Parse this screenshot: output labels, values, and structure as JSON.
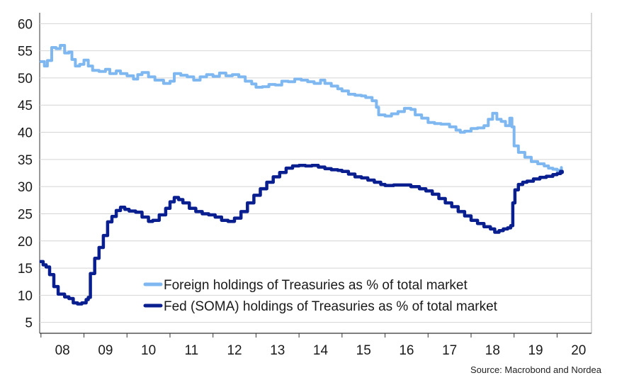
{
  "chart_data": {
    "type": "line",
    "y_ticks": [
      5,
      10,
      15,
      20,
      25,
      30,
      35,
      40,
      45,
      50,
      55,
      60
    ],
    "ylim": [
      3,
      62
    ],
    "x_tick_labels": [
      "08",
      "09",
      "10",
      "11",
      "12",
      "13",
      "14",
      "15",
      "16",
      "17",
      "18",
      "19",
      "20"
    ],
    "xlim": [
      2007.97,
      2020.8
    ],
    "grid": "horizontal",
    "legend_position": "bottom-center",
    "source": "Source: Macrobond and Nordea",
    "series": [
      {
        "name": "Foreign holdings of Treasuries as % of total market",
        "color": "#7fb8f0",
        "points": [
          [
            2008.0,
            53
          ],
          [
            2008.08,
            52.2
          ],
          [
            2008.15,
            53.2
          ],
          [
            2008.25,
            55.6
          ],
          [
            2008.35,
            55.4
          ],
          [
            2008.45,
            56
          ],
          [
            2008.55,
            54.6
          ],
          [
            2008.65,
            54.8
          ],
          [
            2008.72,
            53.4
          ],
          [
            2008.8,
            52.2
          ],
          [
            2008.9,
            52.5
          ],
          [
            2009.0,
            53.3
          ],
          [
            2009.1,
            52.2
          ],
          [
            2009.2,
            51.4
          ],
          [
            2009.35,
            51.2
          ],
          [
            2009.5,
            51.6
          ],
          [
            2009.6,
            50.8
          ],
          [
            2009.75,
            51.3
          ],
          [
            2009.85,
            50.8
          ],
          [
            2010.0,
            50.4
          ],
          [
            2010.15,
            49.8
          ],
          [
            2010.25,
            50.6
          ],
          [
            2010.35,
            51.0
          ],
          [
            2010.5,
            50.2
          ],
          [
            2010.65,
            49.6
          ],
          [
            2010.85,
            49.0
          ],
          [
            2011.0,
            49.4
          ],
          [
            2011.1,
            50.8
          ],
          [
            2011.25,
            50.5
          ],
          [
            2011.4,
            50.2
          ],
          [
            2011.55,
            49.6
          ],
          [
            2011.7,
            50.2
          ],
          [
            2011.85,
            50.6
          ],
          [
            2012.0,
            50.3
          ],
          [
            2012.15,
            50.9
          ],
          [
            2012.3,
            50.4
          ],
          [
            2012.45,
            50.6
          ],
          [
            2012.6,
            50.2
          ],
          [
            2012.75,
            49.4
          ],
          [
            2012.9,
            48.9
          ],
          [
            2013.0,
            48.3
          ],
          [
            2013.15,
            48.4
          ],
          [
            2013.3,
            48.8
          ],
          [
            2013.45,
            48.7
          ],
          [
            2013.6,
            49.4
          ],
          [
            2013.75,
            49.3
          ],
          [
            2013.9,
            49.8
          ],
          [
            2014.05,
            49.6
          ],
          [
            2014.2,
            49.3
          ],
          [
            2014.35,
            49.0
          ],
          [
            2014.5,
            49.6
          ],
          [
            2014.6,
            49.0
          ],
          [
            2014.75,
            48.5
          ],
          [
            2014.9,
            48.0
          ],
          [
            2015.0,
            47.6
          ],
          [
            2015.15,
            47.0
          ],
          [
            2015.3,
            46.8
          ],
          [
            2015.45,
            46.7
          ],
          [
            2015.55,
            46.4
          ],
          [
            2015.7,
            45.8
          ],
          [
            2015.8,
            44.6
          ],
          [
            2015.85,
            43.2
          ],
          [
            2016.0,
            43.0
          ],
          [
            2016.15,
            43.4
          ],
          [
            2016.3,
            43.8
          ],
          [
            2016.45,
            44.4
          ],
          [
            2016.6,
            44.2
          ],
          [
            2016.7,
            43.2
          ],
          [
            2016.85,
            42.6
          ],
          [
            2017.0,
            41.8
          ],
          [
            2017.15,
            41.6
          ],
          [
            2017.3,
            41.5
          ],
          [
            2017.5,
            41.0
          ],
          [
            2017.65,
            40.4
          ],
          [
            2017.75,
            40.0
          ],
          [
            2017.85,
            40.2
          ],
          [
            2018.0,
            40.7
          ],
          [
            2018.15,
            40.8
          ],
          [
            2018.3,
            41.2
          ],
          [
            2018.4,
            42.4
          ],
          [
            2018.5,
            43.5
          ],
          [
            2018.6,
            42.4
          ],
          [
            2018.7,
            42.0
          ],
          [
            2018.8,
            41.2
          ],
          [
            2018.9,
            42.6
          ],
          [
            2018.95,
            41.0
          ],
          [
            2019.0,
            37.5
          ],
          [
            2019.1,
            36.3
          ],
          [
            2019.25,
            35.4
          ],
          [
            2019.4,
            34.6
          ],
          [
            2019.55,
            34.2
          ],
          [
            2019.7,
            33.8
          ],
          [
            2019.8,
            33.4
          ],
          [
            2019.9,
            33.2
          ],
          [
            2020.0,
            33.0
          ],
          [
            2020.1,
            33.5
          ]
        ]
      },
      {
        "name": "Fed (SOMA) holdings of Treasuries as % of total market",
        "color": "#0a1f8f",
        "points": [
          [
            2008.0,
            16.2
          ],
          [
            2008.05,
            15.6
          ],
          [
            2008.12,
            15.2
          ],
          [
            2008.2,
            13.8
          ],
          [
            2008.3,
            11.6
          ],
          [
            2008.4,
            10.2
          ],
          [
            2008.55,
            9.7
          ],
          [
            2008.65,
            9.4
          ],
          [
            2008.75,
            8.6
          ],
          [
            2008.85,
            8.4
          ],
          [
            2008.95,
            8.6
          ],
          [
            2009.05,
            9.2
          ],
          [
            2009.1,
            9.6
          ],
          [
            2009.15,
            14.0
          ],
          [
            2009.25,
            16.8
          ],
          [
            2009.35,
            18.8
          ],
          [
            2009.45,
            21.0
          ],
          [
            2009.55,
            23.5
          ],
          [
            2009.65,
            24.5
          ],
          [
            2009.75,
            25.6
          ],
          [
            2009.85,
            26.2
          ],
          [
            2009.95,
            25.8
          ],
          [
            2010.05,
            25.5
          ],
          [
            2010.2,
            25.3
          ],
          [
            2010.35,
            24.4
          ],
          [
            2010.5,
            23.6
          ],
          [
            2010.6,
            23.8
          ],
          [
            2010.75,
            24.8
          ],
          [
            2010.9,
            26.0
          ],
          [
            2011.0,
            27.2
          ],
          [
            2011.1,
            28.0
          ],
          [
            2011.2,
            27.6
          ],
          [
            2011.3,
            27.0
          ],
          [
            2011.45,
            26.0
          ],
          [
            2011.6,
            25.4
          ],
          [
            2011.75,
            25.0
          ],
          [
            2011.9,
            24.8
          ],
          [
            2012.05,
            24.4
          ],
          [
            2012.2,
            23.8
          ],
          [
            2012.35,
            23.6
          ],
          [
            2012.5,
            24.2
          ],
          [
            2012.65,
            25.4
          ],
          [
            2012.8,
            27.0
          ],
          [
            2012.95,
            28.4
          ],
          [
            2013.1,
            29.6
          ],
          [
            2013.25,
            30.8
          ],
          [
            2013.4,
            31.8
          ],
          [
            2013.55,
            32.6
          ],
          [
            2013.7,
            33.4
          ],
          [
            2013.85,
            33.8
          ],
          [
            2014.0,
            33.9
          ],
          [
            2014.15,
            33.8
          ],
          [
            2014.3,
            33.9
          ],
          [
            2014.45,
            33.6
          ],
          [
            2014.6,
            33.3
          ],
          [
            2014.75,
            33.1
          ],
          [
            2014.9,
            33.0
          ],
          [
            2015.0,
            32.8
          ],
          [
            2015.15,
            32.3
          ],
          [
            2015.3,
            31.8
          ],
          [
            2015.45,
            31.6
          ],
          [
            2015.6,
            31.2
          ],
          [
            2015.75,
            30.8
          ],
          [
            2015.9,
            30.4
          ],
          [
            2016.0,
            30.2
          ],
          [
            2016.2,
            30.3
          ],
          [
            2016.4,
            30.3
          ],
          [
            2016.6,
            30.0
          ],
          [
            2016.8,
            29.6
          ],
          [
            2016.95,
            29.2
          ],
          [
            2017.1,
            28.6
          ],
          [
            2017.25,
            27.8
          ],
          [
            2017.4,
            27.0
          ],
          [
            2017.55,
            26.3
          ],
          [
            2017.7,
            25.4
          ],
          [
            2017.85,
            24.6
          ],
          [
            2018.0,
            23.8
          ],
          [
            2018.15,
            23.2
          ],
          [
            2018.3,
            22.6
          ],
          [
            2018.45,
            22.2
          ],
          [
            2018.55,
            21.6
          ],
          [
            2018.65,
            21.9
          ],
          [
            2018.75,
            22.2
          ],
          [
            2018.85,
            22.4
          ],
          [
            2018.92,
            22.8
          ],
          [
            2018.97,
            27.0
          ],
          [
            2019.02,
            29.4
          ],
          [
            2019.1,
            30.4
          ],
          [
            2019.2,
            30.8
          ],
          [
            2019.3,
            31.0
          ],
          [
            2019.45,
            31.4
          ],
          [
            2019.6,
            31.7
          ],
          [
            2019.75,
            31.9
          ],
          [
            2019.9,
            32.2
          ],
          [
            2020.0,
            32.4
          ],
          [
            2020.08,
            32.8
          ],
          [
            2020.12,
            32.6
          ]
        ]
      }
    ]
  }
}
